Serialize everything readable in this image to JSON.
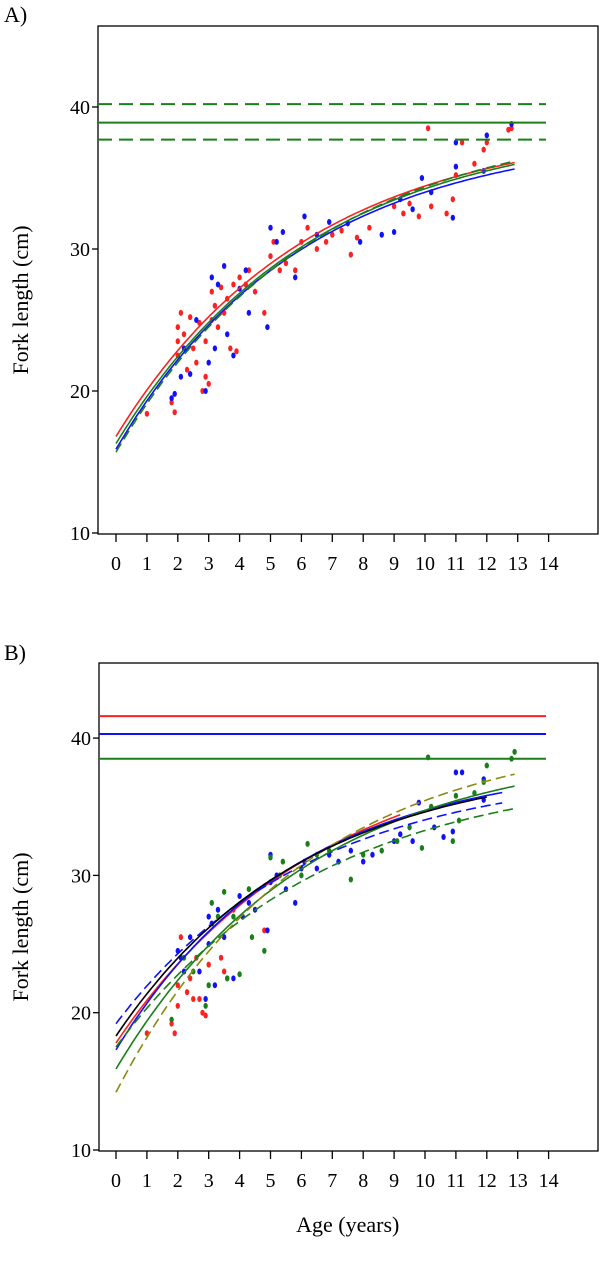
{
  "chart_data": [
    {
      "type": "scatter",
      "panel_label": "A)",
      "xlabel": "",
      "ylabel": "Fork length (cm)",
      "xlim": [
        0,
        14
      ],
      "ylim": [
        10,
        45
      ],
      "xticks": [
        "0",
        "1",
        "2",
        "3",
        "4",
        "5",
        "6",
        "7",
        "8",
        "9",
        "10",
        "11",
        "12",
        "13",
        "14"
      ],
      "yticks": [
        "10",
        "20",
        "30",
        "40"
      ],
      "hlines": [
        {
          "y": 40.2,
          "color": "#1a7f1a",
          "style": "dashed"
        },
        {
          "y": 38.9,
          "color": "#1a7f1a",
          "style": "solid"
        },
        {
          "y": 37.7,
          "color": "#1a7f1a",
          "style": "dashed"
        }
      ],
      "curves": [
        {
          "color": "#ff2020",
          "style": "solid",
          "Linf": 38.9,
          "L0": 16.8,
          "K": 0.16,
          "tmax": 12.9
        },
        {
          "color": "#1010ff",
          "style": "solid",
          "Linf": 38.3,
          "L0": 15.9,
          "K": 0.165,
          "tmax": 12.9
        },
        {
          "color": "#1a7f1a",
          "style": "solid",
          "Linf": 38.9,
          "L0": 16.3,
          "K": 0.158,
          "tmax": 12.9
        },
        {
          "color": "#1a7f1a",
          "style": "dashed",
          "Linf": 39.4,
          "L0": 15.7,
          "K": 0.155,
          "tmax": 12.9
        }
      ],
      "series": [
        {
          "name": "red",
          "color": "#ff2020",
          "points": [
            [
              1,
              18.4
            ],
            [
              1.8,
              19.2
            ],
            [
              1.9,
              18.5
            ],
            [
              2,
              24.5
            ],
            [
              2,
              23.5
            ],
            [
              2,
              22.5
            ],
            [
              2.1,
              25.5
            ],
            [
              2.2,
              24
            ],
            [
              2.3,
              21.5
            ],
            [
              2.4,
              25.2
            ],
            [
              2.5,
              23
            ],
            [
              2.6,
              22
            ],
            [
              2.7,
              24.8
            ],
            [
              2.8,
              20
            ],
            [
              2.9,
              21
            ],
            [
              2.9,
              23.5
            ],
            [
              3,
              20.5
            ],
            [
              3.1,
              27
            ],
            [
              3.1,
              25
            ],
            [
              3.2,
              26
            ],
            [
              3.3,
              24.5
            ],
            [
              3.4,
              27.3
            ],
            [
              3.5,
              25.5
            ],
            [
              3.6,
              26.5
            ],
            [
              3.7,
              23
            ],
            [
              3.8,
              27.5
            ],
            [
              3.9,
              22.8
            ],
            [
              4,
              28
            ],
            [
              4.2,
              27.5
            ],
            [
              4.3,
              28.5
            ],
            [
              4.5,
              27
            ],
            [
              4.8,
              25.5
            ],
            [
              5,
              29.5
            ],
            [
              5.1,
              30.5
            ],
            [
              5.3,
              28.5
            ],
            [
              5.5,
              29
            ],
            [
              5.8,
              28.5
            ],
            [
              6,
              30.5
            ],
            [
              6.2,
              31.5
            ],
            [
              6.5,
              30
            ],
            [
              6.8,
              30.5
            ],
            [
              7,
              31
            ],
            [
              7.3,
              31.3
            ],
            [
              7.6,
              29.6
            ],
            [
              7.8,
              30.8
            ],
            [
              8.2,
              31.5
            ],
            [
              9,
              33
            ],
            [
              9.3,
              32.5
            ],
            [
              9.5,
              33.2
            ],
            [
              9.8,
              32.3
            ],
            [
              10.1,
              38.5
            ],
            [
              10.2,
              33
            ],
            [
              10.7,
              32.5
            ],
            [
              10.9,
              33.5
            ],
            [
              11,
              35.2
            ],
            [
              11.2,
              37.5
            ],
            [
              11.6,
              36
            ],
            [
              11.9,
              37
            ],
            [
              12,
              37.5
            ],
            [
              12.7,
              38.4
            ],
            [
              12.8,
              38.5
            ]
          ]
        },
        {
          "name": "blue",
          "color": "#1010ff",
          "points": [
            [
              1.8,
              19.5
            ],
            [
              1.9,
              19.8
            ],
            [
              2.1,
              21
            ],
            [
              2.2,
              23
            ],
            [
              2.4,
              21.2
            ],
            [
              2.6,
              25
            ],
            [
              2.9,
              20
            ],
            [
              3,
              22
            ],
            [
              3.1,
              28
            ],
            [
              3.2,
              23
            ],
            [
              3.3,
              27.5
            ],
            [
              3.5,
              28.8
            ],
            [
              3.6,
              24
            ],
            [
              3.8,
              22.5
            ],
            [
              4,
              27.2
            ],
            [
              4.2,
              28.5
            ],
            [
              4.3,
              25.5
            ],
            [
              4.9,
              24.5
            ],
            [
              5,
              31.5
            ],
            [
              5.2,
              30.5
            ],
            [
              5.4,
              31.2
            ],
            [
              5.8,
              28
            ],
            [
              6.1,
              32.3
            ],
            [
              6.5,
              31
            ],
            [
              6.9,
              31.9
            ],
            [
              7.5,
              31.8
            ],
            [
              7.9,
              30.5
            ],
            [
              8.6,
              31
            ],
            [
              9,
              31.2
            ],
            [
              9.2,
              33.5
            ],
            [
              9.6,
              32.8
            ],
            [
              9.9,
              35
            ],
            [
              10.2,
              34
            ],
            [
              10.9,
              32.2
            ],
            [
              11,
              37.5
            ],
            [
              11,
              35.8
            ],
            [
              11.9,
              35.5
            ],
            [
              12,
              38
            ],
            [
              12.8,
              38.8
            ]
          ]
        }
      ]
    },
    {
      "type": "scatter",
      "panel_label": "B)",
      "xlabel": "Age (years)",
      "ylabel": "Fork length (cm)",
      "xlim": [
        0,
        14
      ],
      "ylim": [
        10,
        45
      ],
      "xticks": [
        "0",
        "1",
        "2",
        "3",
        "4",
        "5",
        "6",
        "7",
        "8",
        "9",
        "10",
        "11",
        "12",
        "13",
        "14"
      ],
      "yticks": [
        "10",
        "20",
        "30",
        "40"
      ],
      "hlines": [
        {
          "y": 41.6,
          "color": "#ff2020",
          "style": "solid"
        },
        {
          "y": 40.3,
          "color": "#1010ff",
          "style": "solid"
        },
        {
          "y": 38.5,
          "color": "#1a7f1a",
          "style": "solid"
        }
      ],
      "curves": [
        {
          "color": "#ff2020",
          "style": "solid",
          "Linf": 40.0,
          "L0": 17.8,
          "K": 0.15,
          "tmax": 9.2
        },
        {
          "color": "#1010ff",
          "style": "solid",
          "Linf": 38.4,
          "L0": 17.3,
          "K": 0.175,
          "tmax": 12.5
        },
        {
          "color": "#1010ff",
          "style": "dashed",
          "Linf": 37.8,
          "L0": 19.2,
          "K": 0.16,
          "tmax": 12.5
        },
        {
          "color": "#1a7f1a",
          "style": "solid",
          "Linf": 39.5,
          "L0": 15.9,
          "K": 0.16,
          "tmax": 12.9
        },
        {
          "color": "#1a7f1a",
          "style": "dashed",
          "Linf": 37.8,
          "L0": 17.5,
          "K": 0.15,
          "tmax": 12.9
        },
        {
          "color": "#8a8a10",
          "style": "dashed",
          "Linf": 40.5,
          "L0": 14.2,
          "K": 0.165,
          "tmax": 12.9
        },
        {
          "color": "#000000",
          "style": "solid",
          "Linf": 38.5,
          "L0": 18.3,
          "K": 0.165,
          "tmax": 12.0
        }
      ],
      "series": [
        {
          "name": "red",
          "color": "#ff2020",
          "points": [
            [
              1,
              18.5
            ],
            [
              1.8,
              19.2
            ],
            [
              1.9,
              18.5
            ],
            [
              2,
              20.5
            ],
            [
              2,
              22
            ],
            [
              2.1,
              25.5
            ],
            [
              2.2,
              23
            ],
            [
              2.3,
              21.5
            ],
            [
              2.4,
              22.5
            ],
            [
              2.5,
              21
            ],
            [
              2.6,
              24
            ],
            [
              2.7,
              21
            ],
            [
              2.8,
              20
            ],
            [
              2.9,
              19.8
            ],
            [
              3,
              23.5
            ],
            [
              3.4,
              24
            ],
            [
              3.5,
              23
            ],
            [
              3.6,
              22.5
            ],
            [
              3.8,
              27.5
            ],
            [
              4.8,
              26
            ]
          ]
        },
        {
          "name": "blue",
          "color": "#1010ff",
          "points": [
            [
              2,
              24.5
            ],
            [
              2.1,
              24
            ],
            [
              2.2,
              23
            ],
            [
              2.4,
              25.5
            ],
            [
              2.7,
              23
            ],
            [
              2.9,
              21
            ],
            [
              3,
              27
            ],
            [
              3,
              25
            ],
            [
              3.1,
              26.5
            ],
            [
              3.2,
              22
            ],
            [
              3.3,
              27.5
            ],
            [
              3.5,
              25.5
            ],
            [
              3.8,
              22.5
            ],
            [
              4,
              28.5
            ],
            [
              4.1,
              27
            ],
            [
              4.3,
              28
            ],
            [
              4.5,
              27.5
            ],
            [
              4.9,
              26
            ],
            [
              5,
              31.5
            ],
            [
              5,
              29.5
            ],
            [
              5.2,
              30
            ],
            [
              5.5,
              29
            ],
            [
              5.8,
              28
            ],
            [
              6,
              30.5
            ],
            [
              6.1,
              31
            ],
            [
              6.5,
              30.5
            ],
            [
              6.9,
              31.5
            ],
            [
              7.2,
              31
            ],
            [
              7.6,
              31.8
            ],
            [
              8,
              31
            ],
            [
              8.3,
              31.5
            ],
            [
              9,
              32.5
            ],
            [
              9.2,
              33
            ],
            [
              9.6,
              32.5
            ],
            [
              9.8,
              35.3
            ],
            [
              10.3,
              33.5
            ],
            [
              10.6,
              32.8
            ],
            [
              10.9,
              33.2
            ],
            [
              11,
              37.5
            ],
            [
              11.2,
              37.5
            ],
            [
              11.9,
              35.5
            ],
            [
              11.9,
              37
            ]
          ]
        },
        {
          "name": "green",
          "color": "#1a7f1a",
          "points": [
            [
              1.8,
              19.5
            ],
            [
              2.2,
              24
            ],
            [
              2.5,
              23
            ],
            [
              2.9,
              20.5
            ],
            [
              3,
              22
            ],
            [
              3.1,
              28
            ],
            [
              3.3,
              27
            ],
            [
              3.5,
              28.8
            ],
            [
              3.6,
              22.5
            ],
            [
              3.8,
              27
            ],
            [
              4,
              22.8
            ],
            [
              4.3,
              29
            ],
            [
              4.4,
              25.5
            ],
            [
              4.8,
              24.5
            ],
            [
              5,
              31.3
            ],
            [
              5.3,
              30
            ],
            [
              5.4,
              31
            ],
            [
              6,
              30
            ],
            [
              6.2,
              32.3
            ],
            [
              6.5,
              31.5
            ],
            [
              6.9,
              31.8
            ],
            [
              7.6,
              29.7
            ],
            [
              8,
              31.5
            ],
            [
              8.6,
              31.8
            ],
            [
              9.1,
              32.5
            ],
            [
              9.5,
              33.5
            ],
            [
              9.9,
              32
            ],
            [
              10.1,
              38.6
            ],
            [
              10.2,
              35
            ],
            [
              10.9,
              32.5
            ],
            [
              11,
              35.8
            ],
            [
              11.1,
              34
            ],
            [
              11.6,
              36
            ],
            [
              11.9,
              36.8
            ],
            [
              12,
              38
            ],
            [
              12.8,
              38.5
            ],
            [
              12.9,
              39
            ]
          ]
        }
      ]
    }
  ]
}
